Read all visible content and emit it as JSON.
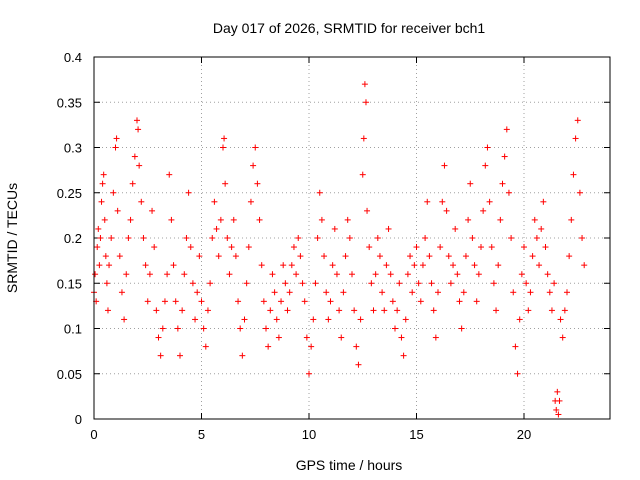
{
  "chart_data": {
    "type": "scatter",
    "title": "Day 017 of 2026, SRMTID for receiver bch1",
    "xlabel": "GPS time / hours",
    "ylabel": "SRMTID / TECUs",
    "xlim": [
      0,
      24
    ],
    "ylim": [
      0,
      0.4
    ],
    "xticks": [
      0,
      5,
      10,
      15,
      20
    ],
    "xtick_labels": [
      "0",
      "5",
      "10",
      "15",
      "20"
    ],
    "yticks": [
      0,
      0.05,
      0.1,
      0.15,
      0.2,
      0.25,
      0.3,
      0.35,
      0.4
    ],
    "ytick_labels": [
      "0",
      "0.05",
      "0.1",
      "0.15",
      "0.2",
      "0.25",
      "0.3",
      "0.35",
      "0.4"
    ],
    "grid": true,
    "marker": "+",
    "marker_color": "#ff0000",
    "series": [
      {
        "name": "SRMTID",
        "points": [
          [
            0.0,
            0.14
          ],
          [
            0.05,
            0.16
          ],
          [
            0.1,
            0.13
          ],
          [
            0.15,
            0.19
          ],
          [
            0.2,
            0.21
          ],
          [
            0.25,
            0.17
          ],
          [
            0.3,
            0.2
          ],
          [
            0.35,
            0.24
          ],
          [
            0.4,
            0.26
          ],
          [
            0.45,
            0.27
          ],
          [
            0.5,
            0.22
          ],
          [
            0.55,
            0.18
          ],
          [
            0.6,
            0.15
          ],
          [
            0.65,
            0.12
          ],
          [
            0.7,
            0.17
          ],
          [
            0.8,
            0.2
          ],
          [
            0.9,
            0.25
          ],
          [
            1.0,
            0.3
          ],
          [
            1.05,
            0.31
          ],
          [
            1.1,
            0.23
          ],
          [
            1.2,
            0.18
          ],
          [
            1.3,
            0.14
          ],
          [
            1.4,
            0.11
          ],
          [
            1.5,
            0.16
          ],
          [
            1.6,
            0.2
          ],
          [
            1.7,
            0.22
          ],
          [
            1.8,
            0.26
          ],
          [
            1.9,
            0.29
          ],
          [
            2.0,
            0.33
          ],
          [
            2.05,
            0.32
          ],
          [
            2.1,
            0.28
          ],
          [
            2.2,
            0.24
          ],
          [
            2.3,
            0.2
          ],
          [
            2.4,
            0.17
          ],
          [
            2.5,
            0.13
          ],
          [
            2.6,
            0.16
          ],
          [
            2.7,
            0.23
          ],
          [
            2.8,
            0.19
          ],
          [
            2.9,
            0.12
          ],
          [
            3.0,
            0.09
          ],
          [
            3.1,
            0.07
          ],
          [
            3.2,
            0.1
          ],
          [
            3.3,
            0.13
          ],
          [
            3.4,
            0.16
          ],
          [
            3.5,
            0.27
          ],
          [
            3.6,
            0.22
          ],
          [
            3.7,
            0.17
          ],
          [
            3.8,
            0.13
          ],
          [
            3.9,
            0.1
          ],
          [
            4.0,
            0.07
          ],
          [
            4.1,
            0.12
          ],
          [
            4.2,
            0.16
          ],
          [
            4.3,
            0.2
          ],
          [
            4.4,
            0.25
          ],
          [
            4.5,
            0.19
          ],
          [
            4.6,
            0.15
          ],
          [
            4.7,
            0.11
          ],
          [
            4.8,
            0.14
          ],
          [
            4.9,
            0.18
          ],
          [
            5.0,
            0.13
          ],
          [
            5.1,
            0.1
          ],
          [
            5.2,
            0.08
          ],
          [
            5.3,
            0.12
          ],
          [
            5.4,
            0.15
          ],
          [
            5.5,
            0.2
          ],
          [
            5.6,
            0.24
          ],
          [
            5.7,
            0.21
          ],
          [
            5.8,
            0.18
          ],
          [
            5.9,
            0.22
          ],
          [
            6.0,
            0.3
          ],
          [
            6.05,
            0.31
          ],
          [
            6.1,
            0.26
          ],
          [
            6.2,
            0.2
          ],
          [
            6.3,
            0.16
          ],
          [
            6.4,
            0.19
          ],
          [
            6.5,
            0.22
          ],
          [
            6.6,
            0.18
          ],
          [
            6.7,
            0.13
          ],
          [
            6.8,
            0.1
          ],
          [
            6.9,
            0.07
          ],
          [
            7.0,
            0.11
          ],
          [
            7.1,
            0.15
          ],
          [
            7.2,
            0.19
          ],
          [
            7.3,
            0.24
          ],
          [
            7.4,
            0.28
          ],
          [
            7.5,
            0.3
          ],
          [
            7.6,
            0.26
          ],
          [
            7.7,
            0.22
          ],
          [
            7.8,
            0.17
          ],
          [
            7.9,
            0.13
          ],
          [
            8.0,
            0.1
          ],
          [
            8.1,
            0.08
          ],
          [
            8.2,
            0.12
          ],
          [
            8.3,
            0.16
          ],
          [
            8.4,
            0.14
          ],
          [
            8.5,
            0.11
          ],
          [
            8.6,
            0.09
          ],
          [
            8.7,
            0.13
          ],
          [
            8.8,
            0.17
          ],
          [
            8.9,
            0.15
          ],
          [
            9.0,
            0.12
          ],
          [
            9.1,
            0.14
          ],
          [
            9.2,
            0.17
          ],
          [
            9.3,
            0.19
          ],
          [
            9.4,
            0.16
          ],
          [
            9.5,
            0.2
          ],
          [
            9.6,
            0.18
          ],
          [
            9.7,
            0.15
          ],
          [
            9.8,
            0.13
          ],
          [
            9.9,
            0.09
          ],
          [
            10.0,
            0.05
          ],
          [
            10.1,
            0.08
          ],
          [
            10.2,
            0.11
          ],
          [
            10.3,
            0.15
          ],
          [
            10.4,
            0.2
          ],
          [
            10.5,
            0.25
          ],
          [
            10.6,
            0.22
          ],
          [
            10.7,
            0.18
          ],
          [
            10.8,
            0.14
          ],
          [
            10.9,
            0.11
          ],
          [
            11.0,
            0.13
          ],
          [
            11.1,
            0.17
          ],
          [
            11.2,
            0.21
          ],
          [
            11.3,
            0.16
          ],
          [
            11.4,
            0.12
          ],
          [
            11.5,
            0.09
          ],
          [
            11.6,
            0.14
          ],
          [
            11.7,
            0.18
          ],
          [
            11.8,
            0.22
          ],
          [
            11.9,
            0.2
          ],
          [
            12.0,
            0.16
          ],
          [
            12.1,
            0.12
          ],
          [
            12.2,
            0.08
          ],
          [
            12.3,
            0.06
          ],
          [
            12.4,
            0.11
          ],
          [
            12.5,
            0.27
          ],
          [
            12.55,
            0.31
          ],
          [
            12.6,
            0.37
          ],
          [
            12.65,
            0.35
          ],
          [
            12.7,
            0.23
          ],
          [
            12.8,
            0.19
          ],
          [
            12.9,
            0.15
          ],
          [
            13.0,
            0.12
          ],
          [
            13.1,
            0.16
          ],
          [
            13.2,
            0.2
          ],
          [
            13.3,
            0.18
          ],
          [
            13.4,
            0.14
          ],
          [
            13.5,
            0.12
          ],
          [
            13.6,
            0.17
          ],
          [
            13.7,
            0.21
          ],
          [
            13.8,
            0.16
          ],
          [
            13.9,
            0.13
          ],
          [
            14.0,
            0.1
          ],
          [
            14.1,
            0.12
          ],
          [
            14.2,
            0.15
          ],
          [
            14.3,
            0.09
          ],
          [
            14.4,
            0.07
          ],
          [
            14.5,
            0.11
          ],
          [
            14.6,
            0.16
          ],
          [
            14.7,
            0.18
          ],
          [
            14.8,
            0.14
          ],
          [
            14.9,
            0.17
          ],
          [
            15.0,
            0.19
          ],
          [
            15.1,
            0.15
          ],
          [
            15.2,
            0.13
          ],
          [
            15.3,
            0.17
          ],
          [
            15.4,
            0.2
          ],
          [
            15.5,
            0.24
          ],
          [
            15.6,
            0.18
          ],
          [
            15.7,
            0.15
          ],
          [
            15.8,
            0.12
          ],
          [
            15.9,
            0.09
          ],
          [
            16.0,
            0.14
          ],
          [
            16.1,
            0.19
          ],
          [
            16.2,
            0.24
          ],
          [
            16.3,
            0.28
          ],
          [
            16.4,
            0.23
          ],
          [
            16.5,
            0.18
          ],
          [
            16.6,
            0.15
          ],
          [
            16.7,
            0.17
          ],
          [
            16.8,
            0.21
          ],
          [
            16.9,
            0.16
          ],
          [
            17.0,
            0.13
          ],
          [
            17.1,
            0.1
          ],
          [
            17.2,
            0.14
          ],
          [
            17.3,
            0.18
          ],
          [
            17.4,
            0.22
          ],
          [
            17.5,
            0.26
          ],
          [
            17.6,
            0.2
          ],
          [
            17.7,
            0.17
          ],
          [
            17.8,
            0.13
          ],
          [
            17.9,
            0.16
          ],
          [
            18.0,
            0.19
          ],
          [
            18.1,
            0.23
          ],
          [
            18.2,
            0.28
          ],
          [
            18.3,
            0.3
          ],
          [
            18.4,
            0.24
          ],
          [
            18.5,
            0.19
          ],
          [
            18.6,
            0.15
          ],
          [
            18.7,
            0.12
          ],
          [
            18.8,
            0.17
          ],
          [
            18.9,
            0.22
          ],
          [
            19.0,
            0.26
          ],
          [
            19.1,
            0.29
          ],
          [
            19.2,
            0.32
          ],
          [
            19.3,
            0.25
          ],
          [
            19.4,
            0.2
          ],
          [
            19.5,
            0.14
          ],
          [
            19.6,
            0.08
          ],
          [
            19.7,
            0.05
          ],
          [
            19.8,
            0.11
          ],
          [
            19.9,
            0.16
          ],
          [
            20.0,
            0.19
          ],
          [
            20.1,
            0.15
          ],
          [
            20.2,
            0.12
          ],
          [
            20.3,
            0.14
          ],
          [
            20.4,
            0.18
          ],
          [
            20.5,
            0.22
          ],
          [
            20.6,
            0.2
          ],
          [
            20.7,
            0.17
          ],
          [
            20.8,
            0.21
          ],
          [
            20.9,
            0.24
          ],
          [
            21.0,
            0.19
          ],
          [
            21.1,
            0.16
          ],
          [
            21.2,
            0.14
          ],
          [
            21.3,
            0.12
          ],
          [
            21.4,
            0.15
          ],
          [
            21.45,
            0.02
          ],
          [
            21.5,
            0.01
          ],
          [
            21.55,
            0.03
          ],
          [
            21.6,
            0.005
          ],
          [
            21.65,
            0.02
          ],
          [
            21.7,
            0.11
          ],
          [
            21.8,
            0.09
          ],
          [
            21.9,
            0.12
          ],
          [
            22.0,
            0.14
          ],
          [
            22.1,
            0.18
          ],
          [
            22.2,
            0.22
          ],
          [
            22.3,
            0.27
          ],
          [
            22.4,
            0.31
          ],
          [
            22.5,
            0.33
          ],
          [
            22.6,
            0.25
          ],
          [
            22.7,
            0.2
          ],
          [
            22.8,
            0.17
          ]
        ]
      }
    ]
  }
}
